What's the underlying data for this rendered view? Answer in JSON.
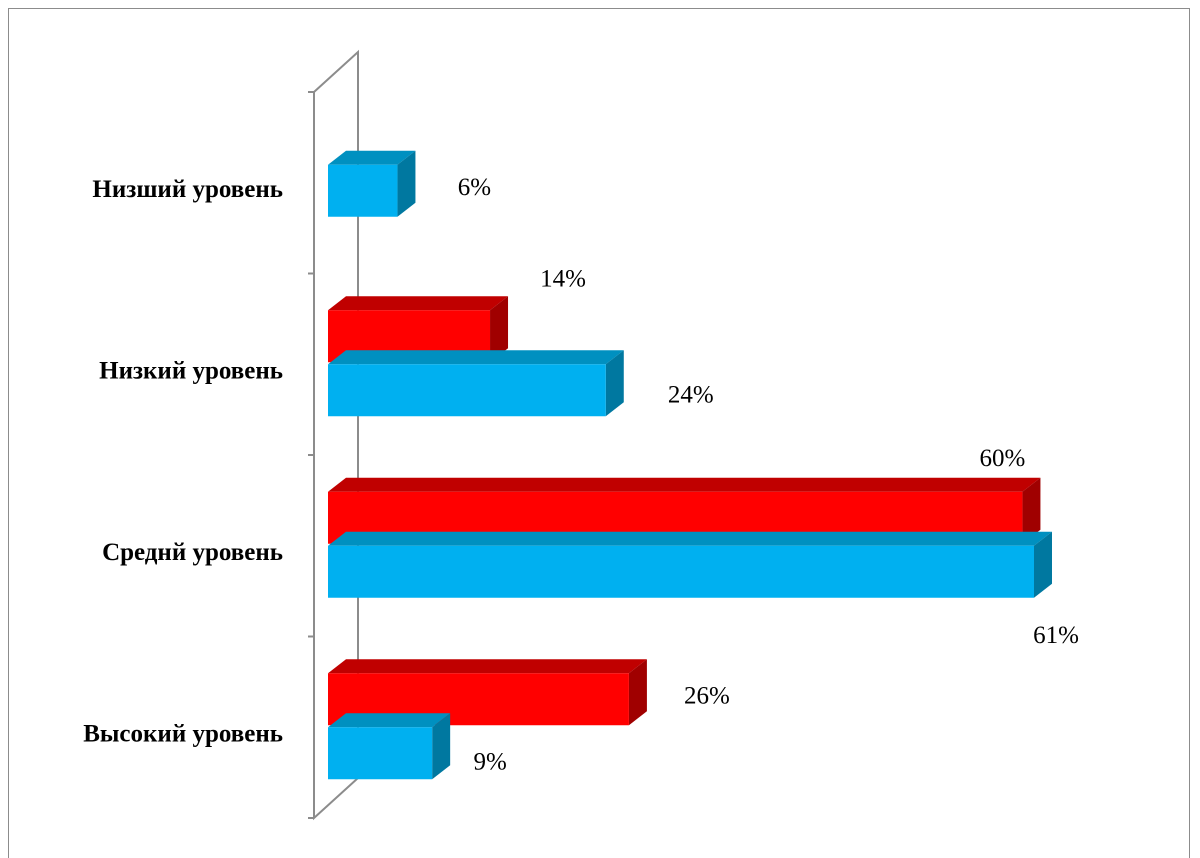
{
  "chart_data": {
    "type": "bar",
    "orientation": "horizontal",
    "three_d": true,
    "categories": [
      "Низший уровень",
      "Низкий уровень",
      "Среднй уровень",
      "Высокий уровень"
    ],
    "series": [
      {
        "color": "#ff0000",
        "side_color": "#a00000",
        "top_color": "#c00000",
        "values": [
          null,
          14,
          60,
          26
        ],
        "labels": [
          "",
          "14%",
          "60%",
          "26%"
        ]
      },
      {
        "color": "#00b0f0",
        "side_color": "#0078a0",
        "top_color": "#0090c0",
        "values": [
          6,
          24,
          61,
          9
        ],
        "labels": [
          "6%",
          "24%",
          "61%",
          "9%"
        ]
      }
    ],
    "xlim": [
      0,
      61
    ],
    "grid": false,
    "legend": "none"
  }
}
